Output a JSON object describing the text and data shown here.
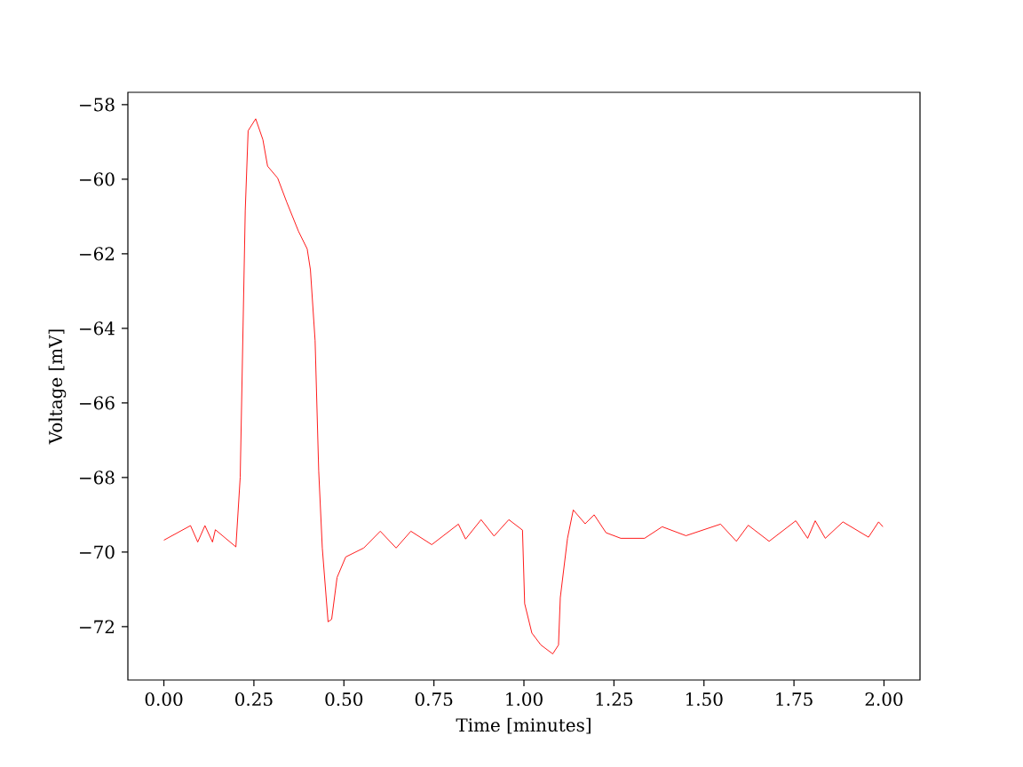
{
  "chart_data": {
    "type": "line",
    "xlabel": "Time [minutes]",
    "ylabel": "Voltage [mV]",
    "x": [
      0.0,
      0.074,
      0.094,
      0.114,
      0.135,
      0.143,
      0.2,
      0.212,
      0.226,
      0.234,
      0.255,
      0.275,
      0.288,
      0.316,
      0.341,
      0.374,
      0.398,
      0.407,
      0.42,
      0.43,
      0.44,
      0.456,
      0.466,
      0.481,
      0.505,
      0.555,
      0.601,
      0.645,
      0.686,
      0.744,
      0.818,
      0.838,
      0.881,
      0.917,
      0.958,
      0.996,
      1.002,
      1.022,
      1.047,
      1.08,
      1.096,
      1.101,
      1.121,
      1.137,
      1.17,
      1.195,
      1.228,
      1.269,
      1.335,
      1.384,
      1.45,
      1.546,
      1.59,
      1.623,
      1.681,
      1.755,
      1.788,
      1.809,
      1.837,
      1.886,
      1.957,
      1.985,
      1.997
    ],
    "series": [
      {
        "color": "#ff0000",
        "values": [
          -69.68,
          -69.29,
          -69.73,
          -69.29,
          -69.73,
          -69.4,
          -69.86,
          -67.99,
          -60.84,
          -58.7,
          -58.38,
          -58.94,
          -59.65,
          -59.97,
          -60.61,
          -61.4,
          -61.87,
          -62.43,
          -64.33,
          -67.82,
          -69.89,
          -71.87,
          -71.8,
          -70.68,
          -70.13,
          -69.89,
          -69.44,
          -69.89,
          -69.44,
          -69.8,
          -69.25,
          -69.65,
          -69.13,
          -69.57,
          -69.13,
          -69.41,
          -71.38,
          -72.17,
          -72.49,
          -72.73,
          -72.49,
          -71.22,
          -69.63,
          -68.87,
          -69.24,
          -69.0,
          -69.48,
          -69.63,
          -69.63,
          -69.32,
          -69.56,
          -69.25,
          -69.71,
          -69.28,
          -69.71,
          -69.16,
          -69.63,
          -69.16,
          -69.63,
          -69.19,
          -69.6,
          -69.19,
          -69.32
        ]
      }
    ],
    "xlim": [
      -0.1,
      2.1
    ],
    "ylim": [
      -73.43,
      -57.67
    ],
    "xticks": [
      {
        "value": 0,
        "label": "0.00"
      },
      {
        "value": 0.25,
        "label": "0.25"
      },
      {
        "value": 0.5,
        "label": "0.50"
      },
      {
        "value": 0.75,
        "label": "0.75"
      },
      {
        "value": 1,
        "label": "1.00"
      },
      {
        "value": 1.25,
        "label": "1.25"
      },
      {
        "value": 1.5,
        "label": "1.50"
      },
      {
        "value": 1.75,
        "label": "1.75"
      },
      {
        "value": 2,
        "label": "2.00"
      }
    ],
    "yticks": [
      {
        "value": -72,
        "label": "−72"
      },
      {
        "value": -70,
        "label": "−70"
      },
      {
        "value": -68,
        "label": "−68"
      },
      {
        "value": -66,
        "label": "−66"
      },
      {
        "value": -64,
        "label": "−64"
      },
      {
        "value": -62,
        "label": "−62"
      },
      {
        "value": -60,
        "label": "−60"
      },
      {
        "value": -58,
        "label": "−58"
      }
    ],
    "grid": false,
    "marker": "none",
    "line_style": "solid"
  }
}
